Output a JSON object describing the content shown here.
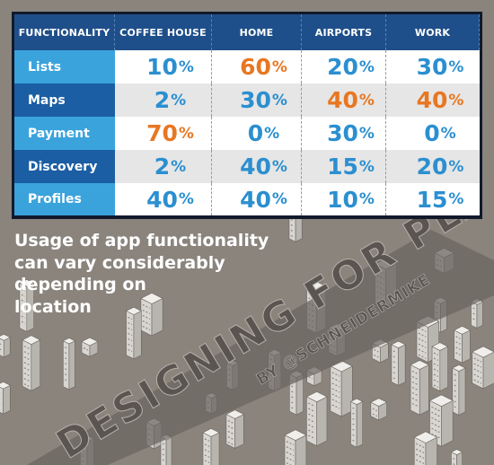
{
  "table": {
    "headers": [
      "FUNCTIONALITY",
      "COFFEE HOUSE",
      "HOME",
      "AIRPORTS",
      "WORK"
    ],
    "rows": [
      {
        "label": "Lists",
        "cells": [
          {
            "num": "10",
            "pct": "%",
            "color": "blue"
          },
          {
            "num": "60",
            "pct": "%",
            "color": "orange"
          },
          {
            "num": "20",
            "pct": "%",
            "color": "blue"
          },
          {
            "num": "30",
            "pct": "%",
            "color": "blue"
          }
        ]
      },
      {
        "label": "Maps",
        "cells": [
          {
            "num": "2",
            "pct": "%",
            "color": "blue"
          },
          {
            "num": "30",
            "pct": "%",
            "color": "blue"
          },
          {
            "num": "40",
            "pct": "%",
            "color": "orange"
          },
          {
            "num": "40",
            "pct": "%",
            "color": "orange"
          }
        ]
      },
      {
        "label": "Payment",
        "cells": [
          {
            "num": "70",
            "pct": "%",
            "color": "orange"
          },
          {
            "num": "0",
            "pct": "%",
            "color": "blue"
          },
          {
            "num": "30",
            "pct": "%",
            "color": "blue"
          },
          {
            "num": "0",
            "pct": "%",
            "color": "blue"
          }
        ]
      },
      {
        "label": "Discovery",
        "cells": [
          {
            "num": "2",
            "pct": "%",
            "color": "blue"
          },
          {
            "num": "40",
            "pct": "%",
            "color": "blue"
          },
          {
            "num": "15",
            "pct": "%",
            "color": "blue"
          },
          {
            "num": "20",
            "pct": "%",
            "color": "blue"
          }
        ]
      },
      {
        "label": "Profiles",
        "cells": [
          {
            "num": "40",
            "pct": "%",
            "color": "blue"
          },
          {
            "num": "40",
            "pct": "%",
            "color": "blue"
          },
          {
            "num": "10",
            "pct": "%",
            "color": "blue"
          },
          {
            "num": "15",
            "pct": "%",
            "color": "blue"
          }
        ]
      }
    ]
  },
  "caption": {
    "lines": [
      "Usage of app functionality",
      "can vary considerably",
      "depending on",
      "location"
    ]
  },
  "banner": {
    "title": "DESIGNING FOR PLACE",
    "byline": "BY @SCHNEIDERMIKE"
  },
  "colors": {
    "header_bg": "#1f4f8a",
    "row_label_light": "#3aa3dc",
    "row_label_dark": "#1b5ea3",
    "value_blue": "#2b8fd0",
    "value_orange": "#e87722",
    "background": "#8a847d"
  }
}
